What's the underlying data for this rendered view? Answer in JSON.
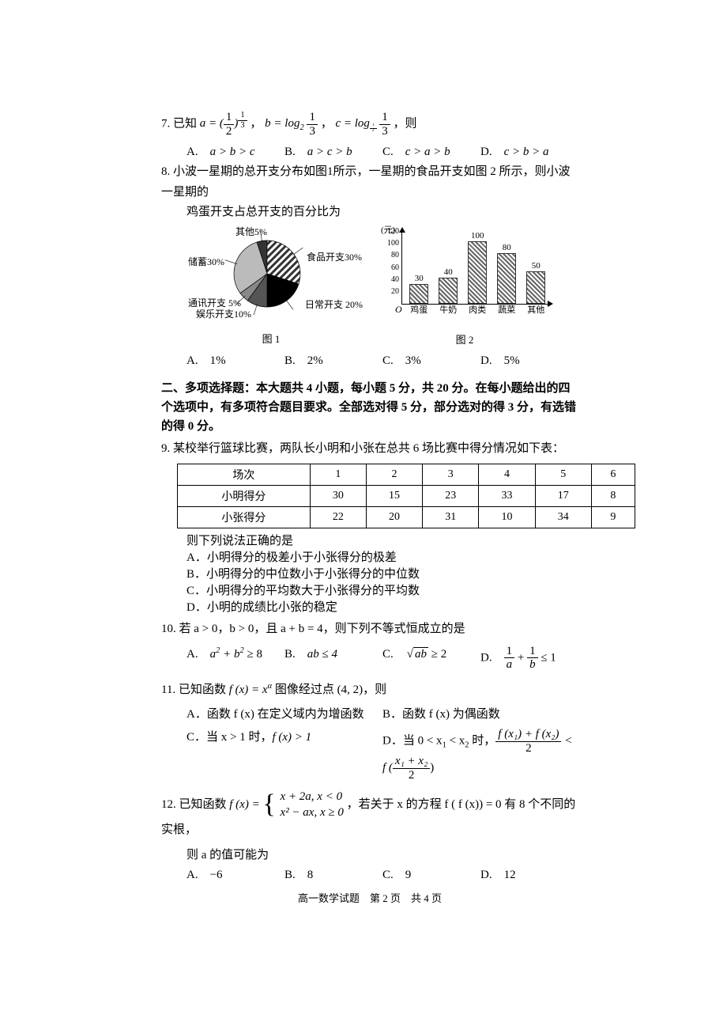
{
  "q7": {
    "num": "7.",
    "text_before": "已知",
    "a_eq": "a = (",
    "frac1_num": "1",
    "frac1_den": "2",
    "a_pow_num": "1",
    "a_pow_den": "3",
    "b_eq": "b = log",
    "b_base": "2",
    "b_frac_num": "1",
    "b_frac_den": "3",
    "c_eq": "c = log",
    "c_base_num": "1",
    "c_base_den": "2",
    "c_frac_num": "1",
    "c_frac_den": "3",
    "tail": "，则",
    "choices": {
      "A": "a > b > c",
      "B": "a > c > b",
      "C": "c > a > b",
      "D": "c > b > a"
    }
  },
  "q8": {
    "num": "8.",
    "line1": "小波一星期的总开支分布如图1所示，一星期的食品开支如图 2 所示，则小波一星期的",
    "line2": "鸡蛋开支占总开支的百分比为",
    "pie": {
      "title": "图 1",
      "labels": {
        "other": "其他5%",
        "food": "食品开支30%",
        "saving": "储蓄30%",
        "daily": "日常开支 20%",
        "comm": "通讯开支 5%",
        "ent": "娱乐开支10%"
      },
      "slices": [
        {
          "label": "食品开支30%",
          "value": 30,
          "color": "#ffffff",
          "pattern": "diag"
        },
        {
          "label": "日常开支 20%",
          "value": 20,
          "color": "#000000"
        },
        {
          "label": "娱乐开支10%",
          "value": 10,
          "color": "#555555"
        },
        {
          "label": "通讯开支 5%",
          "value": 5,
          "color": "#888888"
        },
        {
          "label": "储蓄30%",
          "value": 30,
          "color": "#bbbbbb"
        },
        {
          "label": "其他5%",
          "value": 5,
          "color": "#333333"
        }
      ]
    },
    "bar": {
      "title": "图 2",
      "ylabel": "(元)",
      "ymax": 120,
      "ytick": 20,
      "categories": [
        "鸡蛋",
        "牛奶",
        "肉类",
        "蔬菜",
        "其他"
      ],
      "values": [
        30,
        40,
        100,
        80,
        50
      ]
    },
    "choices": {
      "A": "1%",
      "B": "2%",
      "C": "3%",
      "D": "5%"
    }
  },
  "section2": {
    "title": "二、多项选择题：本大题共 4 小题，每小题 5 分，共 20 分。在每小题给出的四个选项中，有多项符合题目要求。全部选对得 5 分，部分选对的得 3 分，有选错的得 0 分。"
  },
  "q9": {
    "num": "9.",
    "text": "某校举行篮球比赛，两队长小明和小张在总共 6 场比赛中得分情况如下表：",
    "table": {
      "header": [
        "场次",
        "1",
        "2",
        "3",
        "4",
        "5",
        "6"
      ],
      "rows": [
        [
          "小明得分",
          "30",
          "15",
          "23",
          "33",
          "17",
          "8"
        ],
        [
          "小张得分",
          "22",
          "20",
          "31",
          "10",
          "34",
          "9"
        ]
      ]
    },
    "tail": "则下列说法正确的是",
    "choices": {
      "A": "小明得分的极差小于小张得分的极差",
      "B": "小明得分的中位数小于小张得分的中位数",
      "C": "小明得分的平均数大于小张得分的平均数",
      "D": "小明的成绩比小张的稳定"
    }
  },
  "q10": {
    "num": "10.",
    "text": "若 a > 0，b > 0，且 a + b = 4，则下列不等式恒成立的是",
    "choices": {
      "A_pre": "a",
      "A_sup1": "2",
      "A_mid": " + b",
      "A_sup2": "2",
      "A_tail": " ≥ 8",
      "B": "ab ≤ 4",
      "C_rad": "ab",
      "C_tail": " ≥ 2",
      "D_n1": "1",
      "D_d1": "a",
      "D_mid": " + ",
      "D_n2": "1",
      "D_d2": "b",
      "D_tail": " ≤ 1"
    }
  },
  "q11": {
    "num": "11.",
    "text_before": "已知函数 ",
    "fx": "f (x) = x",
    "alpha": "α",
    "text_mid": " 图像经过点 (4, 2)，则",
    "choices": {
      "A": "函数 f (x) 在定义域内为增函数",
      "B": "函数 f (x) 为偶函数",
      "C_pre": "当 x > 1 时，",
      "C_fx": "f (x) > 1",
      "D_pre": "当 0 < x",
      "D_s1": "1",
      "D_mid1": " < x",
      "D_s2": "2",
      "D_mid2": " 时，",
      "D_fnum": "f (x₁) + f (x₂)",
      "D_fden": "2",
      "D_lt": " < f (",
      "D_rnum": "x₁ + x₂",
      "D_rden": "2",
      "D_tail": ")"
    }
  },
  "q12": {
    "num": "12.",
    "text_before": "已知函数 ",
    "fx": "f (x) = ",
    "p1": "x + 2a, x < 0",
    "p2": "x² − ax, x ≥ 0",
    "text_mid": "，若关于 x 的方程 f ( f (x)) = 0 有 8 个不同的实根，",
    "text_tail": "则 a 的值可能为",
    "choices": {
      "A": "−6",
      "B": "8",
      "C": "9",
      "D": "12"
    }
  },
  "footer": "高一数学试题　第 2 页　共 4 页"
}
